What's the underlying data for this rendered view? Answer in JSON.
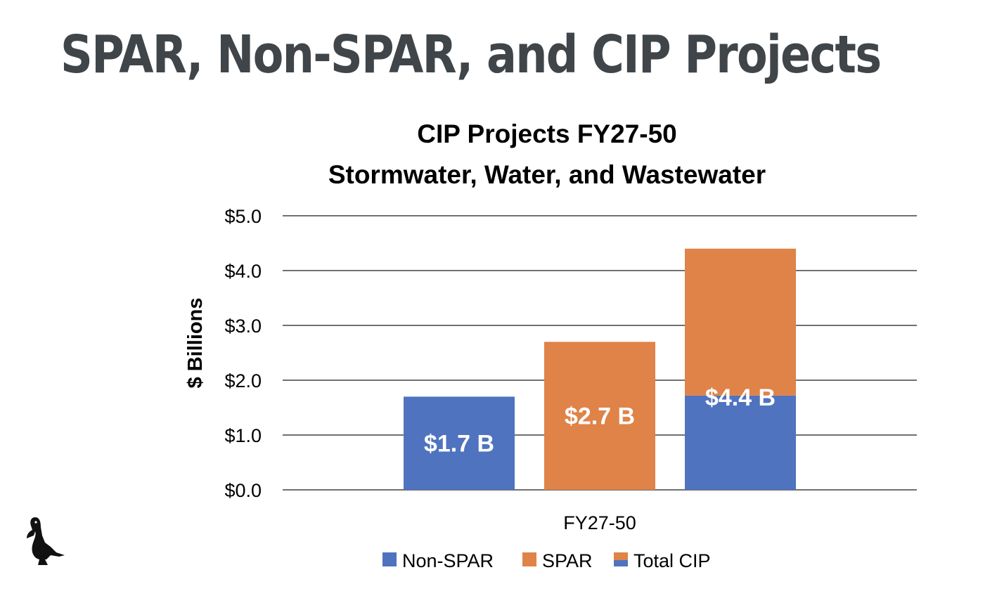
{
  "slide": {
    "title": "SPAR, Non-SPAR, and CIP Projects",
    "logo_icon": "pelican-icon"
  },
  "colors": {
    "title_text": "#3f4549",
    "non_spar": "#4f73bf",
    "spar": "#df8348",
    "gridline": "#1a1a1a",
    "data_label": "#ffffff"
  },
  "chart_data": {
    "type": "bar",
    "title": "CIP Projects FY27-50",
    "subtitle": "Stormwater, Water, and Wastewater",
    "xlabel": "FY27-50",
    "ylabel": "$ Billions",
    "ylim": [
      0,
      5
    ],
    "yticks": [
      0,
      1,
      2,
      3,
      4,
      5
    ],
    "ytick_labels": [
      "$0.0",
      "$1.0",
      "$2.0",
      "$3.0",
      "$4.0",
      "$5.0"
    ],
    "categories": [
      "FY27-50"
    ],
    "grid": true,
    "legend_position": "bottom",
    "legend": [
      {
        "name": "Non-SPAR",
        "swatch": [
          "#4f73bf"
        ]
      },
      {
        "name": "SPAR",
        "swatch": [
          "#df8348"
        ]
      },
      {
        "name": "Total CIP",
        "swatch": [
          "#df8348",
          "#4f73bf"
        ]
      }
    ],
    "bars": [
      {
        "name": "Non-SPAR",
        "segments": [
          {
            "series": "Non-SPAR",
            "value": 1.7
          }
        ],
        "label": "$1.7 B"
      },
      {
        "name": "SPAR",
        "segments": [
          {
            "series": "SPAR",
            "value": 2.7
          }
        ],
        "label": "$2.7 B"
      },
      {
        "name": "Total CIP",
        "segments": [
          {
            "series": "Non-SPAR",
            "value": 1.72
          },
          {
            "series": "SPAR",
            "value": 2.68
          }
        ],
        "label": "$4.4 B"
      }
    ]
  }
}
